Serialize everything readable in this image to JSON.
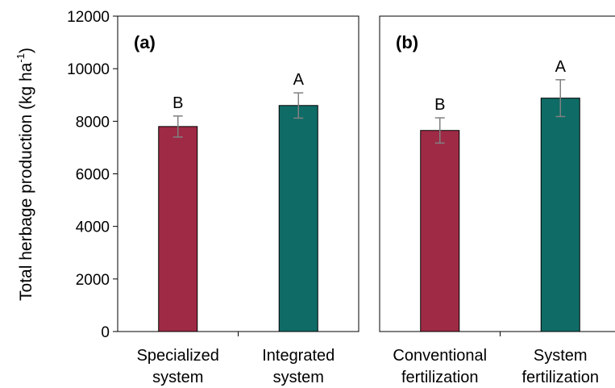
{
  "chart_data": {
    "type": "bar",
    "y_axis": {
      "label_main": "Total herbage production (kg ha",
      "label_superscript": "-1",
      "label_close": ")",
      "ylim": [
        0,
        12000
      ],
      "ticks": [
        "0",
        "2000",
        "4000",
        "6000",
        "8000",
        "10000",
        "12000"
      ],
      "tick_values": [
        0,
        2000,
        4000,
        6000,
        8000,
        10000,
        12000
      ]
    },
    "grid": false,
    "error_bar_color": "#808080",
    "panels": [
      {
        "panel_label": "(a)",
        "categories": [
          {
            "line1": "Specialized",
            "line2": "system"
          },
          {
            "line1": "Integrated",
            "line2": "system"
          }
        ],
        "values": [
          7800,
          8600
        ],
        "errors": [
          400,
          480
        ],
        "significance": [
          "B",
          "A"
        ],
        "colors": [
          "#9e2a45",
          "#0f6b66"
        ]
      },
      {
        "panel_label": "(b)",
        "categories": [
          {
            "line1": "Conventional",
            "line2": "fertilization"
          },
          {
            "line1": "System",
            "line2": "fertilization"
          }
        ],
        "values": [
          7650,
          8880
        ],
        "errors": [
          480,
          700
        ],
        "significance": [
          "B",
          "A"
        ],
        "colors": [
          "#9e2a45",
          "#0f6b66"
        ]
      }
    ]
  }
}
